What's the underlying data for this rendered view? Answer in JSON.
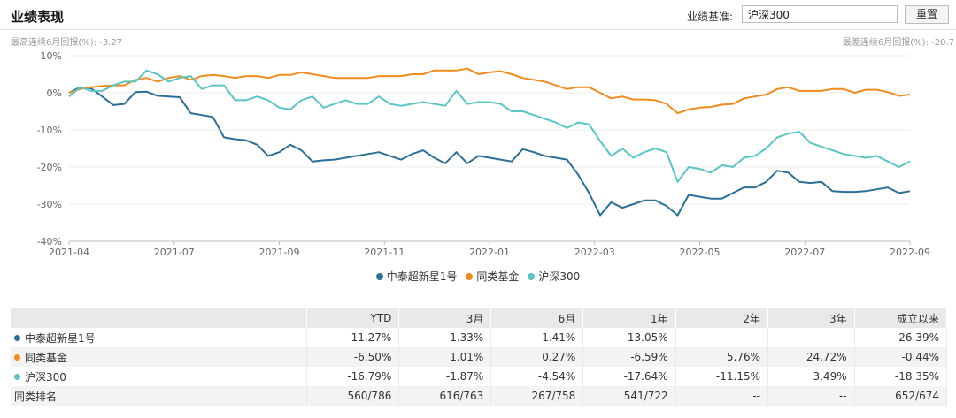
{
  "header": {
    "title": "业绩表现",
    "benchmark_label": "业绩基准:",
    "benchmark_value": "沪深300",
    "reset_label": "重置"
  },
  "notes": {
    "best": "最高连续6月回报(%): -3.27",
    "worst": "最差连续6月回报(%): -20.7"
  },
  "chart_data": {
    "type": "line",
    "x_ticks": [
      "2021-04",
      "2021-07",
      "2021-09",
      "2021-11",
      "2022-01",
      "2022-03",
      "2022-05",
      "2022-07",
      "2022-09"
    ],
    "y_ticks": [
      "10%",
      "0%",
      "-10%",
      "-20%",
      "-30%",
      "-40%"
    ],
    "ylim": [
      -40,
      10
    ],
    "grid": true,
    "legend_position": "bottom",
    "series": [
      {
        "name": "中泰超新星1号",
        "color": "#2b6f97",
        "values": [
          0,
          1.5,
          1.2,
          -1,
          -3.3,
          -3,
          0.2,
          0.3,
          -0.8,
          -1,
          -1.2,
          -5.5,
          -6,
          -6.5,
          -12,
          -12.5,
          -12.8,
          -14,
          -17,
          -16,
          -14,
          -15.5,
          -18.5,
          -18.2,
          -18,
          -17.5,
          -17,
          -16.5,
          -16,
          -17,
          -18,
          -16.5,
          -15.5,
          -17.5,
          -19,
          -16,
          -19,
          -17,
          -17.5,
          -18,
          -18.5,
          -15.2,
          -16,
          -17,
          -17.5,
          -18,
          -22,
          -27,
          -33,
          -29.5,
          -31,
          -30,
          -29,
          -29,
          -30.5,
          -33,
          -27.5,
          -28,
          -28.5,
          -28.5,
          -27,
          -25.5,
          -25.5,
          -24,
          -21,
          -21.5,
          -24,
          -24.3,
          -24,
          -26.5,
          -26.7,
          -26.7,
          -26.5,
          -26,
          -25.5,
          -27,
          -26.5
        ]
      },
      {
        "name": "同类基金",
        "color": "#f08c1e",
        "values": [
          0,
          1,
          1.5,
          1.8,
          2,
          2,
          3.5,
          4,
          3,
          4,
          4.5,
          3.5,
          4.5,
          4.8,
          4.5,
          4,
          4.5,
          4.5,
          4,
          4.8,
          4.8,
          5.5,
          5,
          4.5,
          4,
          4,
          4,
          4,
          4.5,
          4.5,
          4.5,
          5,
          5,
          6,
          6,
          6,
          6.5,
          5,
          5.5,
          5.8,
          5,
          4,
          3.5,
          3,
          2,
          1,
          1.5,
          1.5,
          0,
          -1.5,
          -1,
          -1.8,
          -1.8,
          -2,
          -3,
          -5.5,
          -4.5,
          -4,
          -3.8,
          -3.2,
          -3,
          -1.5,
          -1,
          -0.5,
          1,
          1.5,
          0.5,
          0.5,
          0.5,
          1,
          1,
          0,
          0.8,
          0.8,
          0.2,
          -0.8,
          -0.5
        ]
      },
      {
        "name": "沪深300",
        "color": "#5bc4c4",
        "values": [
          -1,
          1.5,
          0.5,
          0.5,
          2,
          3,
          3,
          6,
          5,
          3,
          4,
          4.5,
          1,
          2,
          2,
          -2,
          -2,
          -1,
          -2,
          -4,
          -4.5,
          -2,
          -1,
          -4,
          -3,
          -2,
          -3,
          -3,
          -1,
          -3,
          -3.5,
          -3,
          -2.5,
          -3,
          -3.5,
          0.5,
          -3,
          -2.5,
          -2.5,
          -3,
          -5,
          -5,
          -6,
          -7,
          -8,
          -9.5,
          -8,
          -8.5,
          -13,
          -17,
          -15,
          -17.5,
          -16,
          -15,
          -16,
          -24,
          -20,
          -20.5,
          -21.5,
          -19.5,
          -20,
          -17.5,
          -17,
          -15,
          -12,
          -11,
          -10.5,
          -13.5,
          -14.5,
          -15.5,
          -16.5,
          -17,
          -17.5,
          -17,
          -18.5,
          -20,
          -18.5
        ]
      }
    ]
  },
  "table": {
    "columns": [
      "",
      "YTD",
      "3月",
      "6月",
      "1年",
      "2年",
      "3年",
      "成立以来"
    ],
    "rows": [
      {
        "name": "中泰超新星1号",
        "color": "#2b6f97",
        "cells": [
          "-11.27%",
          "-1.33%",
          "1.41%",
          "-13.05%",
          "--",
          "--",
          "-26.39%"
        ]
      },
      {
        "name": "同类基金",
        "color": "#f08c1e",
        "cells": [
          "-6.50%",
          "1.01%",
          "0.27%",
          "-6.59%",
          "5.76%",
          "24.72%",
          "-0.44%"
        ]
      },
      {
        "name": "沪深300",
        "color": "#5bc4c4",
        "cells": [
          "-16.79%",
          "-1.87%",
          "-4.54%",
          "-17.64%",
          "-11.15%",
          "3.49%",
          "-18.35%"
        ]
      },
      {
        "name": "同类排名",
        "color": "",
        "cells": [
          "560/786",
          "616/763",
          "267/758",
          "541/722",
          "--",
          "--",
          "652/674"
        ]
      }
    ]
  }
}
